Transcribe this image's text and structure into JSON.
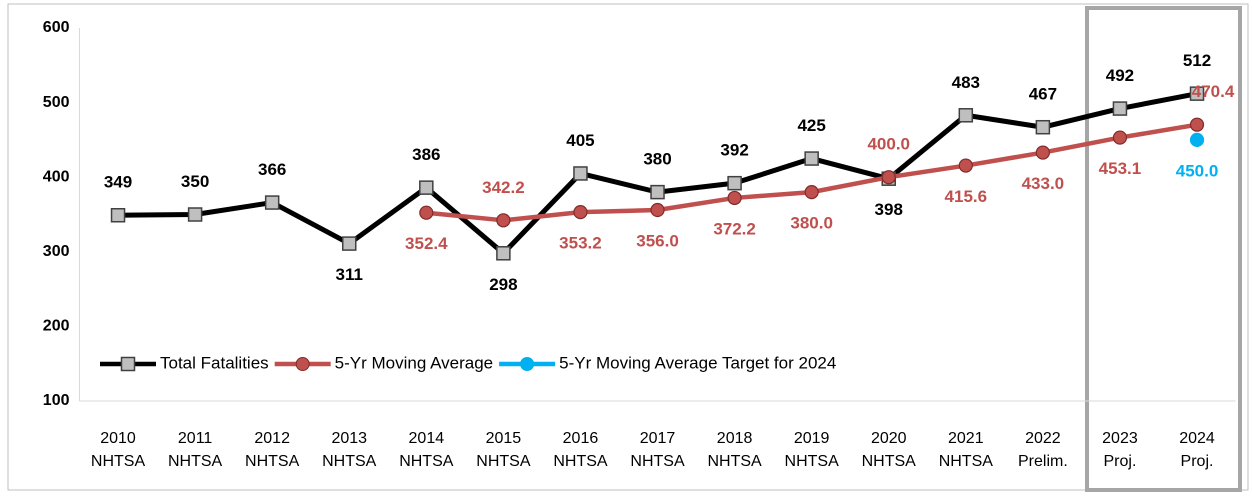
{
  "chart_data": {
    "type": "line",
    "categories": [
      [
        "2010",
        "NHTSA"
      ],
      [
        "2011",
        "NHTSA"
      ],
      [
        "2012",
        "NHTSA"
      ],
      [
        "2013",
        "NHTSA"
      ],
      [
        "2014",
        "NHTSA"
      ],
      [
        "2015",
        "NHTSA"
      ],
      [
        "2016",
        "NHTSA"
      ],
      [
        "2017",
        "NHTSA"
      ],
      [
        "2018",
        "NHTSA"
      ],
      [
        "2019",
        "NHTSA"
      ],
      [
        "2020",
        "NHTSA"
      ],
      [
        "2021",
        "NHTSA"
      ],
      [
        "2022",
        "Prelim."
      ],
      [
        "2023",
        "Proj."
      ],
      [
        "2024",
        "Proj."
      ]
    ],
    "series": [
      {
        "name": "Total Fatalities",
        "color": "#000000",
        "marker": "square",
        "values": [
          349,
          350,
          366,
          311,
          386,
          298,
          405,
          380,
          392,
          425,
          398,
          483,
          467,
          492,
          512
        ]
      },
      {
        "name": "5-Yr Moving Average",
        "color": "#c0504d",
        "marker": "circle",
        "values": [
          null,
          null,
          null,
          null,
          352.4,
          342.2,
          353.2,
          356.0,
          372.2,
          380.0,
          400.0,
          415.6,
          433.0,
          453.1,
          470.4
        ],
        "value_labels": [
          null,
          null,
          null,
          null,
          "352.4",
          "342.2",
          "353.2",
          "356.0",
          "372.2",
          "380.0",
          "400.0",
          "415.6",
          "433.0",
          "453.1",
          "470.4"
        ]
      },
      {
        "name": "5-Yr Moving Average Target for 2024",
        "color": "#00b0f0",
        "marker": "circle",
        "values": [
          null,
          null,
          null,
          null,
          null,
          null,
          null,
          null,
          null,
          null,
          null,
          null,
          null,
          null,
          450.0
        ],
        "value_labels": [
          null,
          null,
          null,
          null,
          null,
          null,
          null,
          null,
          null,
          null,
          null,
          null,
          null,
          null,
          "450.0"
        ]
      }
    ],
    "ylim": [
      100,
      600
    ],
    "yticks": [
      100,
      200,
      300,
      400,
      500,
      600
    ],
    "grid": false,
    "legend": "lower left"
  }
}
